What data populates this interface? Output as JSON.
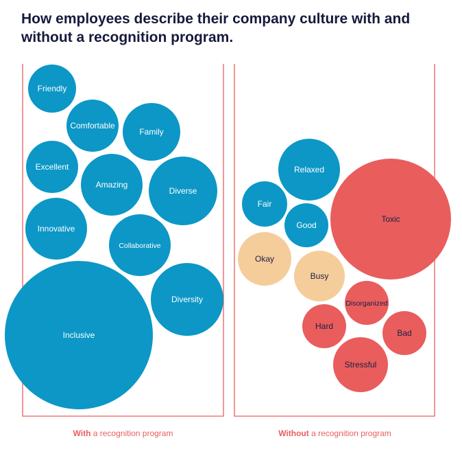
{
  "title": "How employees describe their company culture with and without a recognition program.",
  "colors": {
    "positive": "#0c97c6",
    "neutral": "#f5cd9a",
    "negative": "#e95d5d",
    "frame": "#e95d5d",
    "dark_text": "#1a1f44"
  },
  "chart_data": {
    "type": "bubble",
    "title": "How employees describe their company culture with and without a recognition program.",
    "panels": [
      {
        "label_bold": "With",
        "label_rest": " a recognition program",
        "bubbles": [
          {
            "word": "Friendly",
            "size": 35,
            "sentiment": "positive"
          },
          {
            "word": "Comfortable",
            "size": 38,
            "sentiment": "positive"
          },
          {
            "word": "Family",
            "size": 42,
            "sentiment": "positive"
          },
          {
            "word": "Excellent",
            "size": 38,
            "sentiment": "positive"
          },
          {
            "word": "Amazing",
            "size": 45,
            "sentiment": "positive"
          },
          {
            "word": "Diverse",
            "size": 50,
            "sentiment": "positive"
          },
          {
            "word": "Innovative",
            "size": 45,
            "sentiment": "positive"
          },
          {
            "word": "Collaborative",
            "size": 45,
            "sentiment": "positive"
          },
          {
            "word": "Diversity",
            "size": 53,
            "sentiment": "positive"
          },
          {
            "word": "Inclusive",
            "size": 108,
            "sentiment": "positive"
          }
        ]
      },
      {
        "label_bold": "Without",
        "label_rest": " a recognition program",
        "bubbles": [
          {
            "word": "Relaxed",
            "size": 45,
            "sentiment": "positive"
          },
          {
            "word": "Fair",
            "size": 33,
            "sentiment": "positive"
          },
          {
            "word": "Good",
            "size": 32,
            "sentiment": "positive"
          },
          {
            "word": "Okay",
            "size": 39,
            "sentiment": "neutral"
          },
          {
            "word": "Busy",
            "size": 37,
            "sentiment": "neutral"
          },
          {
            "word": "Toxic",
            "size": 88,
            "sentiment": "negative"
          },
          {
            "word": "Disorganized",
            "size": 32,
            "sentiment": "negative"
          },
          {
            "word": "Hard",
            "size": 32,
            "sentiment": "negative"
          },
          {
            "word": "Bad",
            "size": 32,
            "sentiment": "negative"
          },
          {
            "word": "Stressful",
            "size": 40,
            "sentiment": "negative"
          }
        ]
      }
    ]
  }
}
